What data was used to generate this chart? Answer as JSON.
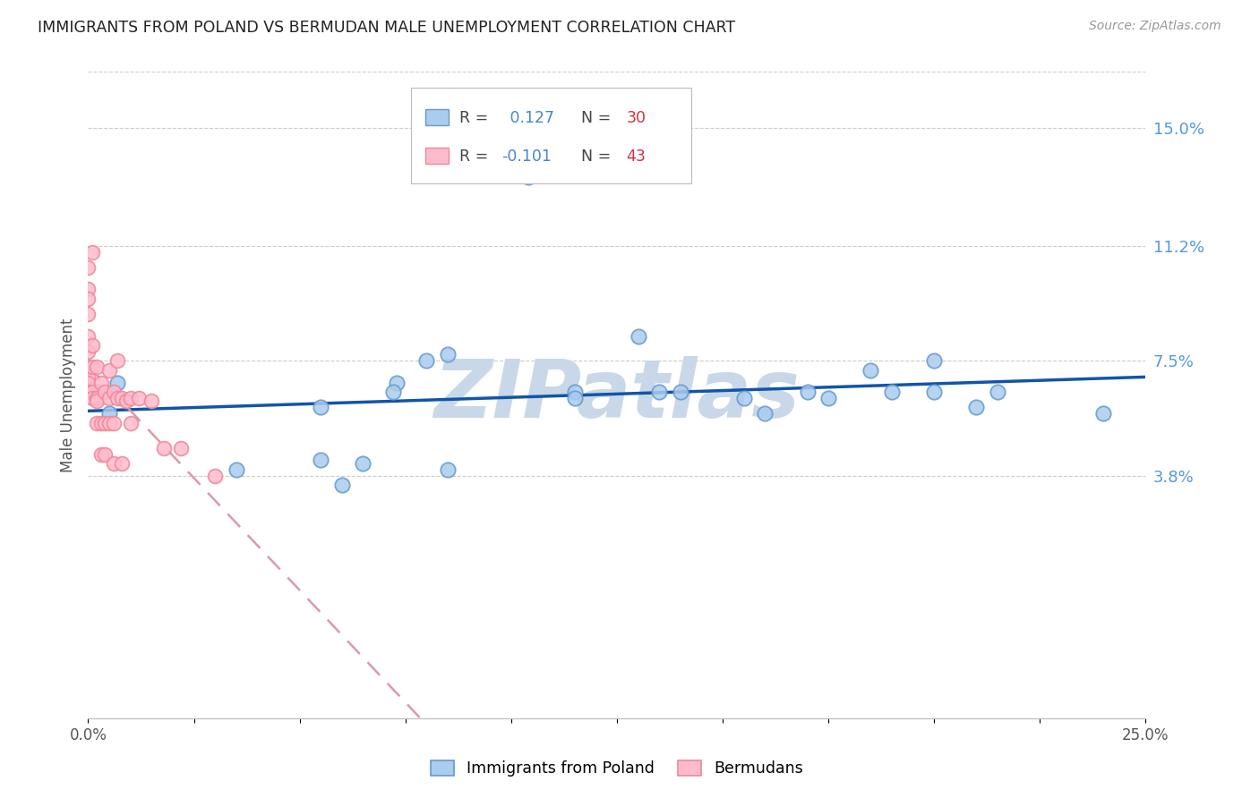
{
  "title": "IMMIGRANTS FROM POLAND VS BERMUDAN MALE UNEMPLOYMENT CORRELATION CHART",
  "source": "Source: ZipAtlas.com",
  "ylabel": "Male Unemployment",
  "xlim": [
    0.0,
    0.25
  ],
  "ylim": [
    -0.04,
    0.168
  ],
  "xticks": [
    0.0,
    0.025,
    0.05,
    0.075,
    0.1,
    0.125,
    0.15,
    0.175,
    0.2,
    0.225,
    0.25
  ],
  "xtick_labels": [
    "0.0%",
    "",
    "",
    "",
    "",
    "",
    "",
    "",
    "",
    "",
    "25.0%"
  ],
  "ytick_right_vals": [
    0.038,
    0.075,
    0.112,
    0.15
  ],
  "ytick_right_labels": [
    "3.8%",
    "7.5%",
    "11.2%",
    "15.0%"
  ],
  "R_blue": 0.127,
  "N_blue": 30,
  "R_pink": -0.101,
  "N_pink": 43,
  "blue_color": "#aaccee",
  "blue_edge": "#6699cc",
  "pink_color": "#ffbbcc",
  "pink_edge": "#ee8899",
  "trendline_blue": "#1155aa",
  "trendline_pink": "#dd99aa",
  "legend_r_color": "#4488cc",
  "legend_n_color": "#cc3344",
  "blue_scatter_x": [
    0.104,
    0.002,
    0.065,
    0.007,
    0.085,
    0.055,
    0.073,
    0.072,
    0.08,
    0.085,
    0.115,
    0.115,
    0.135,
    0.14,
    0.155,
    0.16,
    0.17,
    0.175,
    0.185,
    0.19,
    0.2,
    0.2,
    0.21,
    0.215,
    0.24,
    0.005,
    0.035,
    0.055,
    0.13,
    0.06
  ],
  "blue_scatter_y": [
    0.134,
    0.065,
    0.042,
    0.068,
    0.077,
    0.06,
    0.068,
    0.065,
    0.075,
    0.04,
    0.065,
    0.063,
    0.065,
    0.065,
    0.063,
    0.058,
    0.065,
    0.063,
    0.072,
    0.065,
    0.065,
    0.075,
    0.06,
    0.065,
    0.058,
    0.058,
    0.04,
    0.043,
    0.083,
    0.035
  ],
  "pink_scatter_x": [
    0.0,
    0.0,
    0.0,
    0.0,
    0.0,
    0.0,
    0.0,
    0.0,
    0.0,
    0.0,
    0.001,
    0.001,
    0.001,
    0.001,
    0.001,
    0.002,
    0.002,
    0.002,
    0.002,
    0.003,
    0.003,
    0.003,
    0.004,
    0.004,
    0.004,
    0.005,
    0.005,
    0.005,
    0.006,
    0.006,
    0.006,
    0.007,
    0.007,
    0.008,
    0.008,
    0.009,
    0.01,
    0.01,
    0.012,
    0.015,
    0.018,
    0.022,
    0.03
  ],
  "pink_scatter_y": [
    0.105,
    0.098,
    0.095,
    0.09,
    0.083,
    0.078,
    0.073,
    0.07,
    0.068,
    0.065,
    0.11,
    0.08,
    0.073,
    0.065,
    0.063,
    0.073,
    0.063,
    0.062,
    0.055,
    0.068,
    0.055,
    0.045,
    0.065,
    0.055,
    0.045,
    0.072,
    0.063,
    0.055,
    0.065,
    0.055,
    0.042,
    0.075,
    0.063,
    0.063,
    0.042,
    0.062,
    0.063,
    0.055,
    0.063,
    0.062,
    0.047,
    0.047,
    0.038
  ],
  "watermark": "ZIPatlas",
  "watermark_color": "#c8d8e8",
  "background_color": "#ffffff",
  "grid_color": "#cccccc"
}
